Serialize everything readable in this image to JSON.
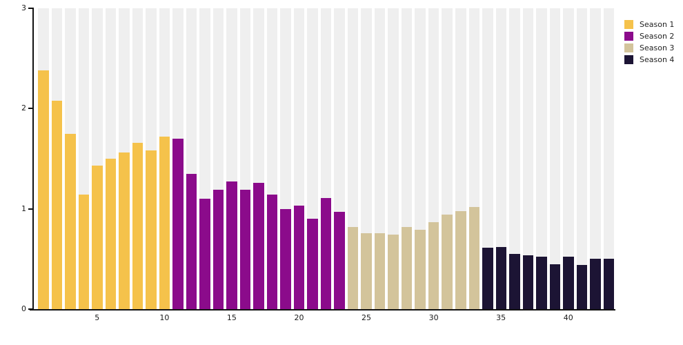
{
  "chart_data": {
    "type": "bar",
    "title": "",
    "xlabel": "",
    "ylabel": "",
    "x_start": 1,
    "x_count": 43,
    "ylim": [
      0,
      3
    ],
    "yticks": [
      0,
      1,
      2,
      3
    ],
    "xticks": [
      5,
      10,
      15,
      20,
      25,
      30,
      35,
      40
    ],
    "grid": "vertical-background-bands",
    "legend_position": "top-right",
    "series": [
      {
        "name": "Season 1",
        "color": "#F5C24B",
        "values": [
          2.38,
          2.08,
          1.75,
          1.14,
          1.43,
          1.5,
          1.56,
          1.66,
          1.58,
          1.72
        ]
      },
      {
        "name": "Season 2",
        "color": "#8B0B8B",
        "values": [
          1.7,
          1.35,
          1.1,
          1.19,
          1.27,
          1.19,
          1.26,
          1.14,
          1.0,
          1.03,
          0.9,
          1.11,
          0.97
        ]
      },
      {
        "name": "Season 3",
        "color": "#D3C49B",
        "values": [
          0.82,
          0.76,
          0.76,
          0.74,
          0.82,
          0.79,
          0.87,
          0.94,
          0.98,
          1.02
        ]
      },
      {
        "name": "Season 4",
        "color": "#1C1434",
        "values": [
          0.61,
          0.62,
          0.55,
          0.54,
          0.52,
          0.45,
          0.52,
          0.44,
          0.5,
          0.5
        ]
      }
    ],
    "colors": {
      "band": "#EFEFEF",
      "axis": "#111111",
      "tick_label": "#1A1A1A",
      "background": "#FFFFFF"
    }
  }
}
